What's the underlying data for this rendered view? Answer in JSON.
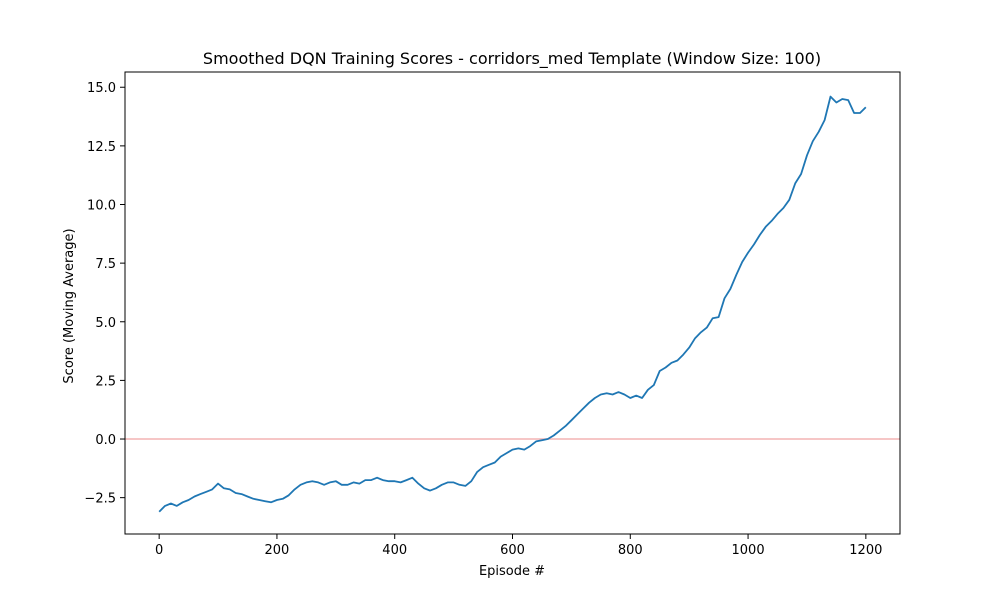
{
  "chart_data": {
    "type": "line",
    "title": "Smoothed DQN Training Scores - corridors_med Template (Window Size: 100)",
    "xlabel": "Episode #",
    "ylabel": "Score (Moving Average)",
    "xlim": [
      -58,
      1258
    ],
    "ylim": [
      -4.05,
      15.65
    ],
    "xticks": [
      0,
      200,
      400,
      600,
      800,
      1000,
      1200
    ],
    "yticks": [
      -2.5,
      0.0,
      2.5,
      5.0,
      7.5,
      10.0,
      12.5,
      15.0
    ],
    "xtick_labels": [
      "0",
      "200",
      "400",
      "600",
      "800",
      "1000",
      "1200"
    ],
    "ytick_labels": [
      "−2.5",
      "0.0",
      "2.5",
      "5.0",
      "7.5",
      "10.0",
      "12.5",
      "15.0"
    ],
    "grid": false,
    "reference_line": {
      "y": 0,
      "color": "#f4b3b3"
    },
    "series": [
      {
        "color": "#1f77b4",
        "x": [
          0,
          10,
          20,
          30,
          40,
          50,
          60,
          70,
          80,
          90,
          100,
          110,
          120,
          130,
          140,
          150,
          160,
          170,
          180,
          190,
          200,
          210,
          220,
          230,
          240,
          250,
          260,
          270,
          280,
          290,
          300,
          310,
          320,
          330,
          340,
          350,
          360,
          370,
          380,
          390,
          400,
          410,
          420,
          430,
          440,
          450,
          460,
          470,
          480,
          490,
          500,
          510,
          520,
          530,
          540,
          550,
          560,
          570,
          580,
          590,
          600,
          610,
          620,
          630,
          640,
          650,
          660,
          670,
          680,
          690,
          700,
          710,
          720,
          730,
          740,
          750,
          760,
          770,
          780,
          790,
          800,
          810,
          820,
          830,
          840,
          850,
          860,
          870,
          880,
          890,
          900,
          910,
          920,
          930,
          940,
          950,
          960,
          970,
          980,
          990,
          1000,
          1010,
          1020,
          1030,
          1040,
          1050,
          1060,
          1070,
          1080,
          1090,
          1100,
          1110,
          1120,
          1130,
          1140,
          1150,
          1160,
          1170,
          1180,
          1190,
          1200
        ],
        "y": [
          -3.1,
          -2.85,
          -2.75,
          -2.85,
          -2.7,
          -2.6,
          -2.45,
          -2.35,
          -2.25,
          -2.15,
          -1.9,
          -2.1,
          -2.15,
          -2.3,
          -2.35,
          -2.45,
          -2.55,
          -2.6,
          -2.65,
          -2.7,
          -2.6,
          -2.55,
          -2.4,
          -2.15,
          -1.95,
          -1.85,
          -1.8,
          -1.85,
          -1.95,
          -1.85,
          -1.8,
          -1.95,
          -1.95,
          -1.85,
          -1.9,
          -1.75,
          -1.75,
          -1.65,
          -1.75,
          -1.8,
          -1.8,
          -1.85,
          -1.75,
          -1.65,
          -1.9,
          -2.1,
          -2.2,
          -2.1,
          -1.95,
          -1.85,
          -1.85,
          -1.95,
          -2.0,
          -1.8,
          -1.4,
          -1.2,
          -1.1,
          -1.0,
          -0.75,
          -0.6,
          -0.45,
          -0.4,
          -0.45,
          -0.3,
          -0.1,
          -0.05,
          0.0,
          0.15,
          0.35,
          0.55,
          0.8,
          1.05,
          1.3,
          1.55,
          1.75,
          1.9,
          1.95,
          1.9,
          2.0,
          1.9,
          1.75,
          1.85,
          1.75,
          2.1,
          2.3,
          2.9,
          3.05,
          3.25,
          3.35,
          3.6,
          3.9,
          4.3,
          4.55,
          4.75,
          5.15,
          5.2,
          6.0,
          6.4,
          7.0,
          7.55,
          7.95,
          8.3,
          8.7,
          9.05,
          9.3,
          9.6,
          9.85,
          10.2,
          10.9,
          11.3,
          12.1,
          12.7,
          13.1,
          13.6,
          14.6,
          14.35,
          14.5,
          14.45,
          13.9,
          13.9,
          14.15
        ]
      }
    ]
  }
}
